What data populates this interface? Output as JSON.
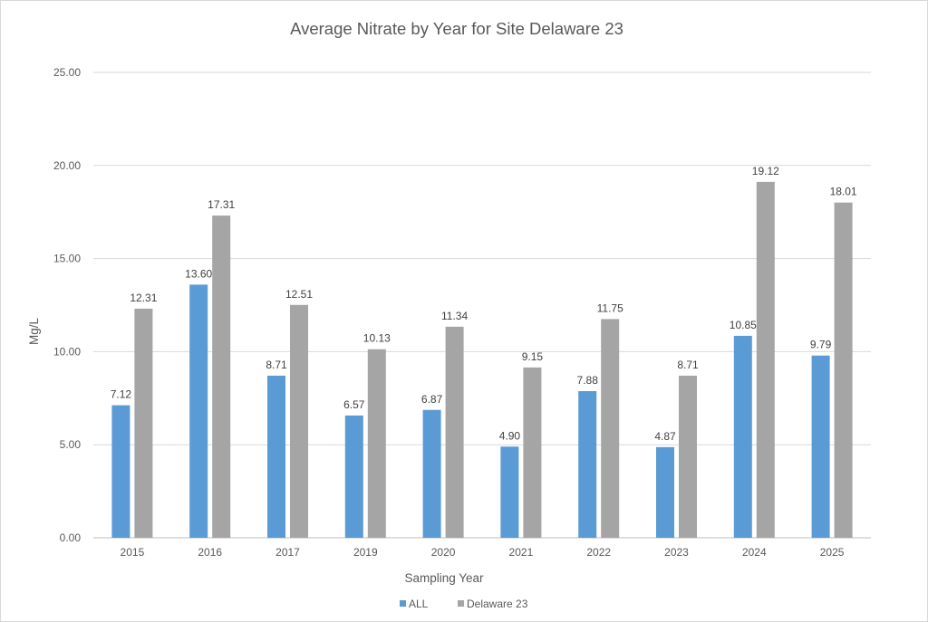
{
  "chart_data": {
    "type": "bar",
    "title": "Average Nitrate by Year for Site Delaware 23",
    "xlabel": "Sampling Year",
    "ylabel": "Mg/L",
    "ylim": [
      0,
      25
    ],
    "y_ticks": [
      "0.00",
      "5.00",
      "10.00",
      "15.00",
      "20.00",
      "25.00"
    ],
    "grid": true,
    "legend_position": "bottom",
    "categories": [
      "2015",
      "2016",
      "2017",
      "2019",
      "2020",
      "2021",
      "2022",
      "2023",
      "2024",
      "2025"
    ],
    "series": [
      {
        "name": "ALL",
        "color": "#5b9bd5",
        "values": [
          7.12,
          13.6,
          8.71,
          6.57,
          6.87,
          4.9,
          7.88,
          4.87,
          10.85,
          9.79
        ],
        "labels": [
          "7.12",
          "13.60",
          "8.71",
          "6.57",
          "6.87",
          "4.90",
          "7.88",
          "4.87",
          "10.85",
          "9.79"
        ]
      },
      {
        "name": "Delaware 23",
        "color": "#a5a5a5",
        "values": [
          12.31,
          17.31,
          12.51,
          10.13,
          11.34,
          9.15,
          11.75,
          8.71,
          19.12,
          18.01
        ],
        "labels": [
          "12.31",
          "17.31",
          "12.51",
          "10.13",
          "11.34",
          "9.15",
          "11.75",
          "8.71",
          "19.12",
          "18.01"
        ]
      }
    ]
  }
}
